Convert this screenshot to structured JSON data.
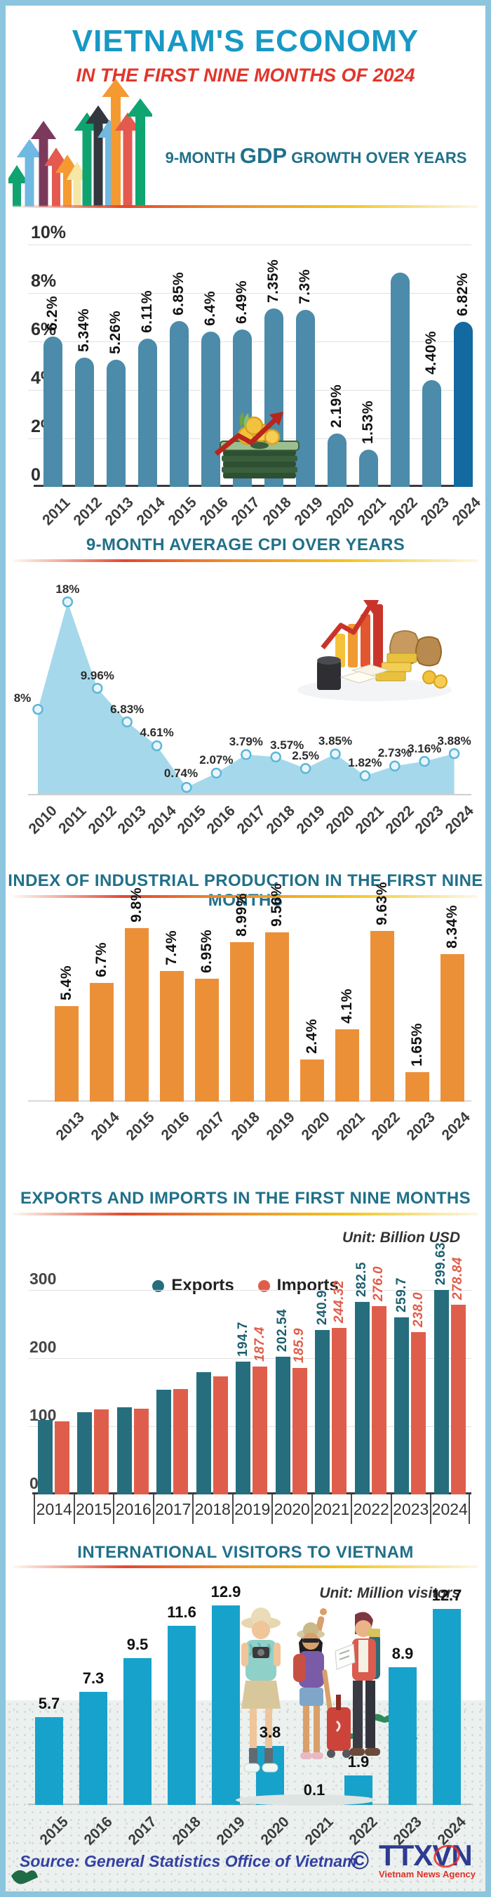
{
  "header": {
    "title": "VIETNAM'S ECONOMY",
    "subtitle": "IN THE FIRST NINE MONTHS OF 2024"
  },
  "sections": {
    "gdp": {
      "heading_prefix": "9-MONTH ",
      "heading_emph": "GDP",
      "heading_suffix": " GROWTH OVER YEARS"
    },
    "cpi": {
      "heading": "9-MONTH AVERAGE CPI OVER YEARS"
    },
    "iip": {
      "heading": "INDEX OF INDUSTRIAL PRODUCTION IN THE FIRST NINE MONTHS"
    },
    "trade": {
      "heading": "EXPORTS AND IMPORTS IN THE FIRST NINE MONTHS",
      "unit": "Unit: Billion USD"
    },
    "visitors": {
      "heading": "INTERNATIONAL VISITORS TO VIETNAM",
      "unit": "Unit: Million visitors"
    }
  },
  "footer": {
    "source": "Source: General Statistics Office of Vietnam",
    "copyright": "©",
    "agency_abbr": "TTXVN",
    "agency_name": "Vietnam News Agency"
  },
  "palette": {
    "frame_border": "#8CC5DE",
    "title_teal": "#1898C5",
    "accent_red": "#E2352C",
    "heading_teal": "#21708A",
    "gdp_bar": "#4C8BA9",
    "gdp_bar_2024": "#136AA0",
    "cpi_area": "#A6D8EB",
    "iip_bar": "#EC9038",
    "exports_bar": "#266E7E",
    "imports_bar": "#DF5E4B",
    "visitors_bar": "#17A2CC"
  },
  "chart_data": [
    {
      "id": "gdp_growth",
      "type": "bar",
      "title": "9-MONTH GDP GROWTH OVER YEARS",
      "unit": "%",
      "categories": [
        "2011",
        "2012",
        "2013",
        "2014",
        "2015",
        "2016",
        "2017",
        "2018",
        "2019",
        "2020",
        "2021",
        "2022",
        "2023",
        "2024"
      ],
      "values": [
        6.2,
        5.34,
        5.26,
        6.11,
        6.85,
        6.4,
        6.49,
        7.35,
        7.3,
        2.19,
        1.53,
        8.85,
        4.4,
        6.82
      ],
      "bar_labels": [
        "6.2%",
        "5.34%",
        "5.26%",
        "6.11%",
        "6.85%",
        "6.4%",
        "6.49%",
        "7.35%",
        "7.3%",
        "2.19%",
        "1.53%",
        "",
        "4.40%",
        "6.82%"
      ],
      "ylim": [
        0,
        10
      ],
      "yticks": [
        10,
        8,
        6,
        4,
        2,
        0
      ],
      "ytick_labels": [
        "10%",
        "8%",
        "6%",
        "4%",
        "2%",
        "0"
      ],
      "grid": true,
      "bar_color": "#4C8BA9",
      "highlight_index": 13,
      "highlight_color": "#136AA0"
    },
    {
      "id": "cpi",
      "type": "area",
      "title": "9-MONTH AVERAGE CPI OVER YEARS",
      "unit": "%",
      "x": [
        "2010",
        "2011",
        "2012",
        "2013",
        "2014",
        "2015",
        "2016",
        "2017",
        "2018",
        "2019",
        "2020",
        "2021",
        "2022",
        "2023",
        "2024"
      ],
      "values": [
        8,
        18,
        9.96,
        6.83,
        4.61,
        0.74,
        2.07,
        3.79,
        3.57,
        2.5,
        3.85,
        1.82,
        2.73,
        3.16,
        3.88
      ],
      "point_labels": [
        "8%",
        "18%",
        "9.96%",
        "6.83%",
        "4.61%",
        "0.74%",
        "2.07%",
        "3.79%",
        "3.57%",
        "2.5%",
        "3.85%",
        "1.82%",
        "2.73%",
        "3.16%",
        "3.88%"
      ],
      "ylim": [
        0,
        19
      ],
      "grid": false,
      "area_color": "#A6D8EB",
      "marker_fill": "#E8F6FB",
      "marker_stroke": "#5EB6D8"
    },
    {
      "id": "iip",
      "type": "bar",
      "title": "INDEX OF INDUSTRIAL PRODUCTION IN THE FIRST NINE MONTHS",
      "unit": "%",
      "categories": [
        "2013",
        "2014",
        "2015",
        "2016",
        "2017",
        "2018",
        "2019",
        "2020",
        "2021",
        "2022",
        "2023",
        "2024"
      ],
      "values": [
        5.4,
        6.7,
        9.8,
        7.4,
        6.95,
        8.99,
        9.56,
        2.4,
        4.1,
        9.63,
        1.65,
        8.34
      ],
      "bar_labels": [
        "5.4%",
        "6.7%",
        "9.8%",
        "7.4%",
        "6.95%",
        "8.99%",
        "9.56%",
        "2.4%",
        "4.1%",
        "9.63%",
        "1.65%",
        "8.34%"
      ],
      "ylim": [
        0,
        10.5
      ],
      "grid": false,
      "bar_color": "#EC9038"
    },
    {
      "id": "trade",
      "type": "bar",
      "title": "EXPORTS AND IMPORTS IN THE FIRST NINE MONTHS",
      "unit": "Billion USD",
      "categories": [
        "2014",
        "2015",
        "2016",
        "2017",
        "2018",
        "2019",
        "2020",
        "2021",
        "2022",
        "2023",
        "2024"
      ],
      "series": [
        {
          "name": "Exports",
          "color": "#266E7E",
          "values": [
            109.6,
            120.2,
            128.2,
            154.0,
            179.0,
            194.7,
            202.54,
            240.9,
            282.5,
            259.7,
            299.63
          ],
          "bar_labels": [
            "",
            "",
            "",
            "",
            "",
            "194.7",
            "202.54",
            "240.9",
            "282.5",
            "259.7",
            "299.63"
          ]
        },
        {
          "name": "Imports",
          "color": "#DF5E4B",
          "values": [
            107.0,
            124.5,
            125.4,
            154.5,
            173.5,
            187.4,
            185.9,
            244.32,
            276.0,
            238.0,
            278.84
          ],
          "bar_labels": [
            "",
            "",
            "",
            "",
            "",
            "187.4",
            "185.9",
            "244.32",
            "276.0",
            "238.0",
            "278.84"
          ]
        }
      ],
      "ylim": [
        0,
        320
      ],
      "yticks": [
        300,
        200,
        100,
        0
      ],
      "ytick_labels": [
        "300",
        "200",
        "100",
        "0"
      ],
      "grid": true,
      "legend_position": "top-center"
    },
    {
      "id": "visitors",
      "type": "bar",
      "title": "INTERNATIONAL VISITORS TO VIETNAM",
      "unit": "Million visitors",
      "categories": [
        "2015",
        "2016",
        "2017",
        "2018",
        "2019",
        "2020",
        "2021",
        "2022",
        "2023",
        "2024"
      ],
      "values": [
        5.7,
        7.3,
        9.5,
        11.6,
        12.9,
        3.8,
        0.1,
        1.9,
        8.9,
        12.7
      ],
      "bar_labels": [
        "5.7",
        "7.3",
        "9.5",
        "11.6",
        "12.9",
        "3.8",
        "0.1",
        "1.9",
        "8.9",
        "12.7"
      ],
      "ylim": [
        0,
        13.5
      ],
      "grid": false,
      "bar_color": "#17A2CC"
    }
  ]
}
